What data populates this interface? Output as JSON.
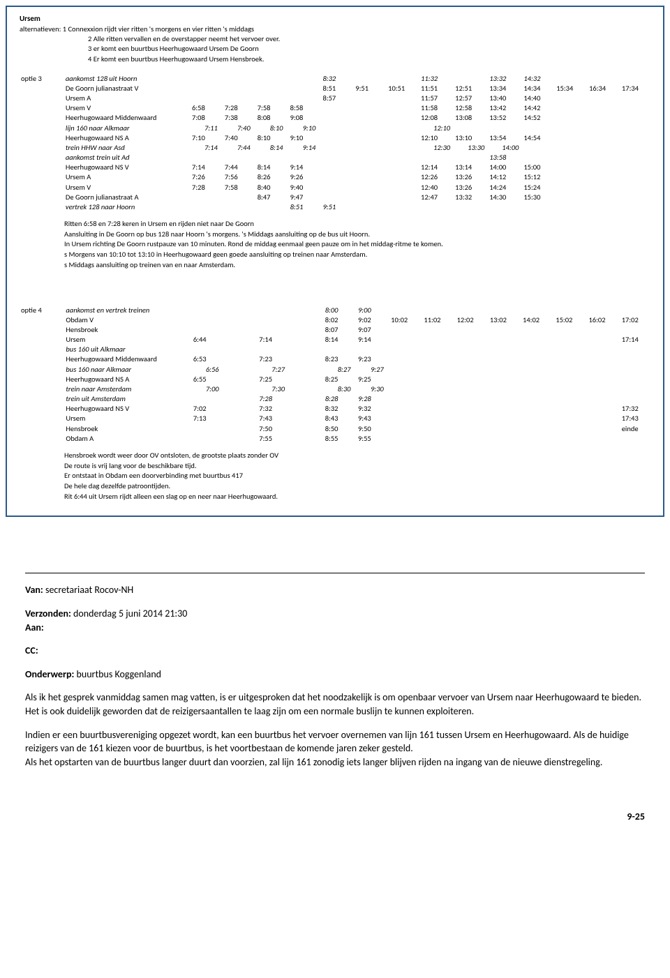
{
  "header": {
    "title_label": "Ursem",
    "alternatives_label": "alternatieven:",
    "alt1": "1  Connexxion rijdt vier ritten 's morgens en vier ritten 's middags",
    "alt2": "2 Alle ritten vervallen en de overstapper neemt het vervoer over.",
    "alt3": "3 er komt een buurtbus Heerhugowaard Ursem De Goorn",
    "alt4": "4 Er komt een buurtbus Heerhugowaard Ursem Hensbroek."
  },
  "optie3": {
    "label": "optie 3",
    "rows": [
      {
        "name": "aankomst 128 uit Hoorn",
        "it": true,
        "t": [
          "",
          "",
          "",
          "",
          "8:32",
          "",
          "",
          "11:32",
          "",
          "13:32",
          "14:32",
          "",
          "",
          ""
        ]
      },
      {
        "name": "De Goorn julianastraat V",
        "t": [
          "",
          "",
          "",
          "",
          "8:51",
          "9:51",
          "10:51",
          "11:51",
          "12:51",
          "13:34",
          "14:34",
          "15:34",
          "16:34",
          "17:34"
        ]
      },
      {
        "name": "Ursem A",
        "t": [
          "",
          "",
          "",
          "",
          "8:57",
          "",
          "",
          "11:57",
          "12:57",
          "13:40",
          "14:40",
          "",
          "",
          ""
        ]
      },
      {
        "name": "Ursem V",
        "t": [
          "6:58",
          "7:28",
          "7:58",
          "8:58",
          "",
          "",
          "",
          "11:58",
          "12:58",
          "13:42",
          "14:42",
          "",
          "",
          ""
        ]
      },
      {
        "name": "Heerhugowaard Middenwaard",
        "t": [
          "7:08",
          "7:38",
          "8:08",
          "9:08",
          "",
          "",
          "",
          "12:08",
          "13:08",
          "13:52",
          "14:52",
          "",
          "",
          ""
        ]
      },
      {
        "name": "lijn 160 naar Alkmaar",
        "it": true,
        "h": true,
        "t": [
          "7:11",
          "7:40",
          "8:10",
          "9:10",
          "",
          "",
          "",
          "12:10",
          "",
          "",
          "",
          "",
          "",
          ""
        ]
      },
      {
        "name": "Heerhugowaard NS  A",
        "t": [
          "7:10",
          "7:40",
          "8:10",
          "9:10",
          "",
          "",
          "",
          "12:10",
          "13:10",
          "13:54",
          "14:54",
          "",
          "",
          ""
        ]
      },
      {
        "name": "trein HHW naar Asd",
        "it": true,
        "h": true,
        "t": [
          "7:14",
          "7:44",
          "8:14",
          "9:14",
          "",
          "",
          "",
          "12:30",
          "13:30",
          "14:00",
          "",
          "",
          "",
          ""
        ]
      },
      {
        "name": "aankomst trein uit Ad",
        "it": true,
        "t": [
          "",
          "",
          "",
          "",
          "",
          "",
          "",
          "",
          "",
          "13:58",
          "",
          "",
          "",
          ""
        ]
      },
      {
        "name": "Heerhugowaard NS  V",
        "t": [
          "7:14",
          "7:44",
          "8:14",
          "9:14",
          "",
          "",
          "",
          "12:14",
          "13:14",
          "14:00",
          "15:00",
          "",
          "",
          ""
        ]
      },
      {
        "name": "Ursem A",
        "t": [
          "7:26",
          "7:56",
          "8:26",
          "9:26",
          "",
          "",
          "",
          "12:26",
          "13:26",
          "14:12",
          "15:12",
          "",
          "",
          ""
        ]
      },
      {
        "name": "Ursem V",
        "t": [
          "7:28",
          "7:58",
          "8:40",
          "9:40",
          "",
          "",
          "",
          "12:40",
          "13:26",
          "14:24",
          "15:24",
          "",
          "",
          ""
        ]
      },
      {
        "name": "De Goorn julianastraat A",
        "t": [
          "",
          "",
          "8:47",
          "9:47",
          "",
          "",
          "",
          "12:47",
          "13:32",
          "14:30",
          "15:30",
          "",
          "",
          ""
        ]
      },
      {
        "name": "vertrek 128 naar Hoorn",
        "it": true,
        "t": [
          "",
          "",
          "",
          "8:51",
          "9:51",
          "",
          "",
          "",
          "",
          "",
          "",
          "",
          "",
          ""
        ]
      }
    ],
    "notes": [
      "Ritten 6:58 en 7:28 keren in Ursem en rijden niet naar De Goorn",
      "Aansluiting in De Goorn op bus 128 naar Hoorn 's morgens. 's Middags aansluiting op de bus uit Hoorn.",
      "In Ursem richting De Goorn rustpauze van 10 minuten. Rond de middag eenmaal geen pauze om in het middag-ritme te komen.",
      "s Morgens van 10:10 tot 13:10 in Heerhugowaard geen goede aansluiting op treinen naar Amsterdam.",
      "s Middags aansluiting op treinen van en naar Amsterdam."
    ]
  },
  "optie4": {
    "label": "optie 4",
    "rows": [
      {
        "name": "aankomst en vertrek treinen",
        "it": true,
        "t": [
          "",
          "",
          "",
          "",
          "8:00",
          "9:00",
          "",
          "",
          "",
          "",
          "",
          "",
          "",
          ""
        ]
      },
      {
        "name": "Obdam V",
        "t": [
          "",
          "",
          "",
          "",
          "8:02",
          "9:02",
          "10:02",
          "11:02",
          "12:02",
          "13:02",
          "14:02",
          "15:02",
          "16:02",
          "17:02"
        ]
      },
      {
        "name": "Hensbroek",
        "t": [
          "",
          "",
          "",
          "",
          "8:07",
          "9:07",
          "",
          "",
          "",
          "",
          "",
          "",
          "",
          ""
        ]
      },
      {
        "name": "Ursem",
        "t": [
          "6:44",
          "",
          "7:14",
          "",
          "8:14",
          "9:14",
          "",
          "",
          "",
          "",
          "",
          "",
          "",
          "17:14"
        ]
      },
      {
        "name": "bus 160 uit Alkmaar",
        "it": true,
        "t": [
          "",
          "",
          "",
          "",
          "",
          "",
          "",
          "",
          "",
          "",
          "",
          "",
          "",
          ""
        ]
      },
      {
        "name": "Heerhugowaard Middenwaard",
        "t": [
          "6:53",
          "",
          "7:23",
          "",
          "8:23",
          "9:23",
          "",
          "",
          "",
          "",
          "",
          "",
          "",
          ""
        ]
      },
      {
        "name": "bus 160 naar Alkmaar",
        "it": true,
        "h": true,
        "t": [
          "6:56",
          "",
          "7:27",
          "",
          "8:27",
          "9:27",
          "",
          "",
          "",
          "",
          "",
          "",
          "",
          ""
        ]
      },
      {
        "name": "Heerhugowaard NS  A",
        "t": [
          "6:55",
          "",
          "7:25",
          "",
          "8:25",
          "9:25",
          "",
          "",
          "",
          "",
          "",
          "",
          "",
          ""
        ]
      },
      {
        "name": "trein naar Amsterdam",
        "it": true,
        "h": true,
        "t": [
          "7:00",
          "",
          "7:30",
          "",
          "8:30",
          "9:30",
          "",
          "",
          "",
          "",
          "",
          "",
          "",
          ""
        ]
      },
      {
        "name": "trein uit Amsterdam",
        "it": true,
        "t": [
          "",
          "",
          "7:28",
          "",
          "8:28",
          "9:28",
          "",
          "",
          "",
          "",
          "",
          "",
          "",
          ""
        ]
      },
      {
        "name": "Heerhugowaard NS  V",
        "t": [
          "7:02",
          "",
          "7:32",
          "",
          "8:32",
          "9:32",
          "",
          "",
          "",
          "",
          "",
          "",
          "",
          "17:32"
        ]
      },
      {
        "name": "Ursem",
        "t": [
          "7:13",
          "",
          "7:43",
          "",
          "8:43",
          "9:43",
          "",
          "",
          "",
          "",
          "",
          "",
          "",
          "17:43"
        ]
      },
      {
        "name": "Hensbroek",
        "t": [
          "",
          "",
          "7:50",
          "",
          "8:50",
          "9:50",
          "",
          "",
          "",
          "",
          "",
          "",
          "",
          "einde"
        ]
      },
      {
        "name": "Obdam A",
        "t": [
          "",
          "",
          "7:55",
          "",
          "8:55",
          "9:55",
          "",
          "",
          "",
          "",
          "",
          "",
          "",
          ""
        ]
      }
    ],
    "notes": [
      "Hensbroek wordt weer door OV ontsloten, de grootste plaats zonder OV",
      "De route is vrij lang voor de beschikbare tijd.",
      "Er ontstaat in Obdam een doorverbinding met buurtbus 417",
      "De hele dag dezelfde patroontijden.",
      "Rit 6:44 uit Ursem rijdt alleen een slag op en neer naar Heerhugowaard."
    ]
  },
  "email": {
    "van_label": "Van:",
    "van_value": " secretariaat Rocov-NH",
    "verzonden_label": "Verzonden:",
    "verzonden_value": " donderdag 5 juni 2014 21:30",
    "aan_label": "Aan:",
    "cc_label": "CC:",
    "onderwerp_label": "Onderwerp:",
    "onderwerp_value": " buurtbus Koggenland",
    "body1": "Als ik het gesprek vanmiddag samen mag vatten, is er uitgesproken dat het noodzakelijk is om openbaar vervoer van Ursem naar Heerhugowaard te bieden. Het is ook duidelijk geworden dat de reizigersaantallen te laag zijn om een normale buslijn te kunnen exploiteren.",
    "body2": "Indien er een buurtbusvereniging opgezet wordt, kan een buurtbus het vervoer overnemen van lijn 161 tussen Ursem en Heerhugowaard. Als de huidige reizigers van de 161 kiezen voor de buurtbus, is het voortbestaan de komende jaren zeker gesteld.",
    "body3": "Als het opstarten van de buurtbus langer duurt dan voorzien, zal lijn 161 zonodig iets langer blijven rijden na ingang van de nieuwe dienstregeling."
  },
  "page_number": "9-25"
}
